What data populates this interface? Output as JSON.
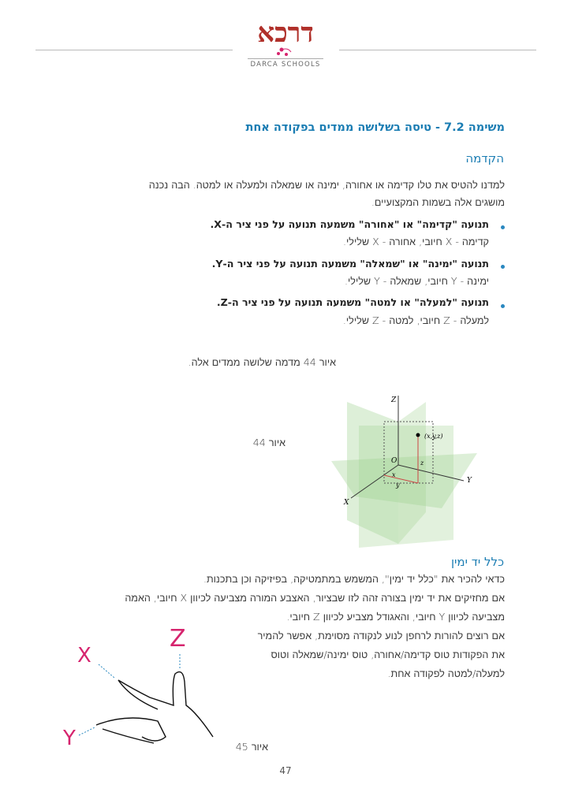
{
  "header": {
    "logo_hebrew": "דרכא",
    "logo_caption": "DARCA SCHOOLS"
  },
  "colors": {
    "accent": "#1b7db3",
    "logo_red": "#b0302a",
    "axis_magenta": "#d6246e"
  },
  "title": "משימה 7.2 - טיסה בשלושה ממדים בפקודה אחת",
  "intro": {
    "heading": "הקדמה",
    "lines": [
      "למדנו להטיס את טלו קדימה או אחורה, ימינה או שמאלה ולמעלה או למטה. הבה נכנה",
      "מושגים אלה בשמות המקצועיים."
    ],
    "bullets": [
      {
        "bold": "תנועה \"קדימה\" או \"אחורה\" משמעה תנועה על פני ציר ה-X.",
        "detail": "קדימה - X חיובי, אחורה - X  שלילי."
      },
      {
        "bold": "תנועה \"ימינה\" או \"שמאלה\" משמעה תנועה על פני ציר ה-Y.",
        "detail": "ימינה - Y חיובי, שמאלה - Y  שלילי."
      },
      {
        "bold": "תנועה \"למעלה\" או למטה\" משמעה תנועה על פני ציר ה-Z.",
        "detail": "למעלה - Z חיובי, למטה - Z שלילי."
      }
    ],
    "figure_ref": "איור 44 מדמה שלושה ממדים אלה."
  },
  "figure44": {
    "caption": "איור 44",
    "labels": {
      "z": "Z",
      "y": "Y",
      "x": "X",
      "origin": "O",
      "point": "(x,y,z)",
      "sx": "x",
      "sy": "y",
      "sz": "z"
    }
  },
  "right_hand": {
    "heading": "כלל יד ימין",
    "lines": [
      "כדאי להכיר את \"כלל יד ימין\", המשמש במתמטיקה, בפיזיקה וכן בתכנות.",
      "אם מחזיקים את יד ימין בצורה זהה לזו שבציור, האצבע המורה מצביעה לכיוון X חיובי, האמה",
      "מצביעה לכיוון Y חיובי, והאגודל מצביע לכיוון Z חיובי.",
      "אם רוצים להורות לרחפן לנוע לנקודה מסוימת, אפשר להמיר",
      "את הפקודות טוס קדימה/אחורה, טוס ימינה/שמאלה וטוס",
      "למעלה/למטה לפקודה אחת."
    ]
  },
  "figure45": {
    "caption": "איור 45",
    "labels": {
      "x": "X",
      "y": "Y",
      "z": "Z"
    }
  },
  "page_number": "47"
}
